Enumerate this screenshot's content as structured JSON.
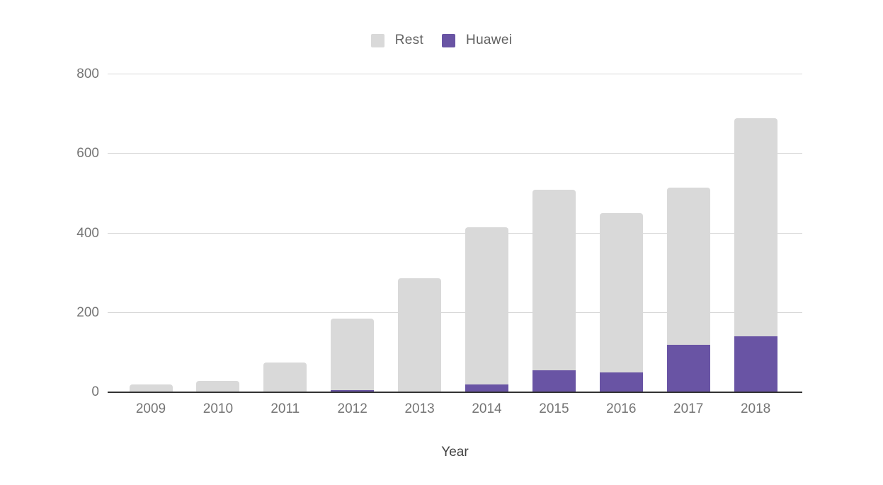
{
  "chart_data": {
    "type": "bar",
    "stacked": true,
    "title": "",
    "xlabel": "Year",
    "ylabel": "",
    "ylim": [
      0,
      800
    ],
    "yticks": [
      0,
      200,
      400,
      600,
      800
    ],
    "grid": true,
    "legend_position": "top-center",
    "legend_order": [
      "Rest",
      "Huawei"
    ],
    "categories": [
      "2009",
      "2010",
      "2011",
      "2012",
      "2013",
      "2014",
      "2015",
      "2016",
      "2017",
      "2018"
    ],
    "series": [
      {
        "name": "Huawei",
        "color": "#6954a4",
        "values": [
          0,
          0,
          0,
          5,
          0,
          20,
          55,
          50,
          120,
          140
        ]
      },
      {
        "name": "Rest",
        "color": "#d9d9d9",
        "values": [
          20,
          28,
          75,
          180,
          287,
          395,
          455,
          400,
          395,
          550
        ]
      }
    ],
    "totals": [
      20,
      28,
      75,
      185,
      287,
      415,
      510,
      450,
      515,
      690
    ]
  },
  "colors": {
    "rest": "#d9d9d9",
    "huawei": "#6954a4",
    "gridline": "#d7d7d7",
    "baseline": "#333333",
    "tick_text": "#757575",
    "legend_text": "#616161",
    "axis_title_text": "#424242",
    "background": "#ffffff"
  }
}
